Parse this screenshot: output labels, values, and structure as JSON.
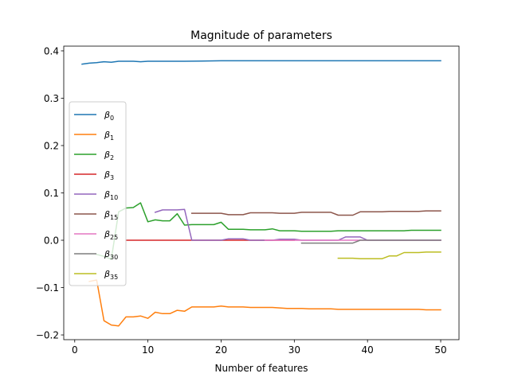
{
  "chart_data": {
    "type": "line",
    "title": "Magnitude of parameters",
    "xlabel": "Number of features",
    "ylabel": "",
    "xlim": [
      -1.5,
      52.5
    ],
    "ylim": [
      -0.21,
      0.41
    ],
    "xticks": [
      0,
      10,
      20,
      30,
      40,
      50
    ],
    "xtick_labels": [
      "0",
      "10",
      "20",
      "30",
      "40",
      "50"
    ],
    "yticks": [
      -0.2,
      -0.1,
      0.0,
      0.1,
      0.2,
      0.3,
      0.4
    ],
    "ytick_labels": [
      "−0.2",
      "−0.1",
      "0.0",
      "0.1",
      "0.2",
      "0.3",
      "0.4"
    ],
    "grid": false,
    "legend_position": "center-left",
    "series": [
      {
        "name": "β₀",
        "base": "β",
        "sub": "0",
        "color": "#1f77b4",
        "x": [
          1,
          2,
          3,
          4,
          5,
          6,
          7,
          8,
          9,
          10,
          12,
          15,
          20,
          25,
          30,
          35,
          40,
          45,
          50
        ],
        "y": [
          0.372,
          0.374,
          0.375,
          0.377,
          0.376,
          0.378,
          0.378,
          0.378,
          0.377,
          0.378,
          0.378,
          0.378,
          0.379,
          0.379,
          0.379,
          0.379,
          0.379,
          0.379,
          0.379
        ]
      },
      {
        "name": "β₁",
        "base": "β",
        "sub": "1",
        "color": "#ff7f0e",
        "x": [
          2,
          3,
          4,
          5,
          6,
          7,
          8,
          9,
          10,
          11,
          12,
          13,
          14,
          15,
          16,
          17,
          18,
          19,
          20,
          21,
          22,
          23,
          24,
          25,
          26,
          27,
          28,
          29,
          30,
          31,
          32,
          33,
          34,
          35,
          36,
          37,
          38,
          39,
          40,
          41,
          42,
          43,
          44,
          45,
          46,
          47,
          48,
          49,
          50
        ],
        "y": [
          -0.087,
          -0.084,
          -0.17,
          -0.179,
          -0.181,
          -0.162,
          -0.162,
          -0.16,
          -0.165,
          -0.152,
          -0.155,
          -0.155,
          -0.148,
          -0.15,
          -0.141,
          -0.141,
          -0.141,
          -0.141,
          -0.139,
          -0.141,
          -0.141,
          -0.141,
          -0.142,
          -0.142,
          -0.142,
          -0.142,
          -0.143,
          -0.144,
          -0.144,
          -0.144,
          -0.145,
          -0.145,
          -0.145,
          -0.145,
          -0.146,
          -0.146,
          -0.146,
          -0.146,
          -0.146,
          -0.146,
          -0.146,
          -0.146,
          -0.146,
          -0.146,
          -0.146,
          -0.146,
          -0.147,
          -0.147,
          -0.147
        ]
      },
      {
        "name": "β₂",
        "base": "β",
        "sub": "2",
        "color": "#2ca02c",
        "x": [
          3,
          4,
          5,
          6,
          7,
          8,
          9,
          10,
          11,
          12,
          13,
          14,
          15,
          16,
          17,
          18,
          19,
          20,
          21,
          22,
          23,
          24,
          25,
          26,
          27,
          28,
          29,
          30,
          31,
          32,
          33,
          34,
          35,
          36,
          37,
          38,
          39,
          40,
          41,
          42,
          43,
          44,
          45,
          46,
          47,
          48,
          49,
          50
        ],
        "y": [
          -0.03,
          -0.034,
          -0.04,
          0.06,
          0.068,
          0.069,
          0.079,
          0.039,
          0.043,
          0.041,
          0.041,
          0.056,
          0.032,
          0.033,
          0.033,
          0.033,
          0.033,
          0.038,
          0.023,
          0.023,
          0.023,
          0.022,
          0.022,
          0.022,
          0.024,
          0.02,
          0.02,
          0.02,
          0.019,
          0.019,
          0.019,
          0.019,
          0.019,
          0.02,
          0.02,
          0.02,
          0.02,
          0.02,
          0.02,
          0.02,
          0.02,
          0.02,
          0.02,
          0.021,
          0.021,
          0.021,
          0.021,
          0.021
        ]
      },
      {
        "name": "β₃",
        "base": "β",
        "sub": "3",
        "color": "#d62728",
        "x": [
          7,
          10,
          15,
          20,
          25,
          30
        ],
        "y": [
          0.0,
          0.0,
          0.0,
          0.0,
          0.0,
          0.0
        ]
      },
      {
        "name": "β₁₀",
        "base": "β",
        "sub": "10",
        "color": "#9467bd",
        "x": [
          11,
          12,
          13,
          14,
          15,
          16,
          17,
          18,
          19,
          20,
          21,
          22,
          23,
          24,
          25,
          26,
          27,
          28,
          29,
          30,
          31,
          32,
          33,
          34,
          35,
          36,
          37,
          38,
          39,
          40,
          45,
          50
        ],
        "y": [
          0.059,
          0.064,
          0.064,
          0.064,
          0.065,
          0.0,
          0.0,
          0.0,
          0.0,
          0.0,
          0.003,
          0.003,
          0.003,
          0.0,
          0.0,
          0.0,
          0.0,
          0.002,
          0.002,
          0.002,
          0.0,
          0.0,
          0.0,
          0.0,
          0.0,
          0.0,
          0.007,
          0.007,
          0.007,
          0.0,
          0.0,
          0.0
        ]
      },
      {
        "name": "β₁₅",
        "base": "β",
        "sub": "15",
        "color": "#8c564b",
        "x": [
          16,
          17,
          18,
          19,
          20,
          21,
          22,
          23,
          24,
          25,
          26,
          27,
          28,
          29,
          30,
          31,
          32,
          33,
          34,
          35,
          36,
          37,
          38,
          39,
          40,
          41,
          42,
          43,
          44,
          45,
          46,
          47,
          48,
          49,
          50
        ],
        "y": [
          0.057,
          0.057,
          0.057,
          0.057,
          0.057,
          0.054,
          0.054,
          0.054,
          0.058,
          0.058,
          0.058,
          0.058,
          0.057,
          0.057,
          0.057,
          0.059,
          0.059,
          0.059,
          0.059,
          0.059,
          0.053,
          0.053,
          0.053,
          0.06,
          0.06,
          0.06,
          0.06,
          0.061,
          0.061,
          0.061,
          0.061,
          0.061,
          0.062,
          0.062,
          0.062
        ]
      },
      {
        "name": "β₂₅",
        "base": "β",
        "sub": "25",
        "color": "#e377c2",
        "x": [
          26,
          30,
          35,
          40,
          45,
          50
        ],
        "y": [
          0.0,
          0.0,
          0.0,
          0.0,
          0.0,
          0.0
        ]
      },
      {
        "name": "β₃₀",
        "base": "β",
        "sub": "30",
        "color": "#7f7f7f",
        "x": [
          31,
          32,
          33,
          34,
          35,
          36,
          37,
          38,
          39,
          40,
          45,
          50
        ],
        "y": [
          -0.006,
          -0.006,
          -0.006,
          -0.006,
          -0.006,
          -0.006,
          -0.006,
          -0.006,
          0.0,
          0.0,
          0.0,
          0.0
        ]
      },
      {
        "name": "β₃₅",
        "base": "β",
        "sub": "35",
        "color": "#bcbd22",
        "x": [
          36,
          37,
          38,
          39,
          40,
          41,
          42,
          43,
          44,
          45,
          46,
          47,
          48,
          49,
          50
        ],
        "y": [
          -0.038,
          -0.038,
          -0.038,
          -0.039,
          -0.039,
          -0.039,
          -0.039,
          -0.033,
          -0.033,
          -0.026,
          -0.026,
          -0.026,
          -0.025,
          -0.025,
          -0.025
        ]
      }
    ]
  }
}
